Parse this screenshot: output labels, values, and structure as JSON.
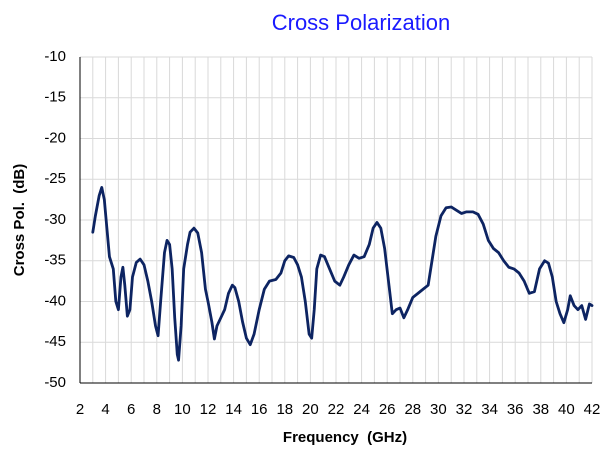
{
  "chart_data": {
    "type": "line",
    "title": "Cross Polarization",
    "xlabel": "Frequency  (GHz)",
    "ylabel": "Cross Pol.  (dB)",
    "title_color": "#1a1aff",
    "color": "#0d2462",
    "grid": true,
    "xlim": [
      2,
      42
    ],
    "xticks": [
      2,
      4,
      6,
      8,
      10,
      12,
      14,
      16,
      18,
      20,
      22,
      24,
      26,
      28,
      30,
      32,
      34,
      36,
      38,
      40,
      42
    ],
    "xminorticks": [
      3,
      5,
      7,
      9,
      11,
      13,
      15,
      17,
      19,
      21,
      23,
      25,
      27,
      29,
      31,
      33,
      35,
      37,
      39,
      41
    ],
    "ylim": [
      -50,
      -10
    ],
    "yticks": [
      -50,
      -45,
      -40,
      -35,
      -30,
      -25,
      -20,
      -15,
      -10
    ],
    "x": [
      3.0,
      3.2,
      3.5,
      3.7,
      3.9,
      4.1,
      4.3,
      4.6,
      4.8,
      5.0,
      5.2,
      5.35,
      5.5,
      5.7,
      5.9,
      6.1,
      6.4,
      6.7,
      7.0,
      7.3,
      7.6,
      7.9,
      8.1,
      8.3,
      8.6,
      8.8,
      9.0,
      9.2,
      9.4,
      9.6,
      9.7,
      9.9,
      10.1,
      10.4,
      10.6,
      10.9,
      11.2,
      11.5,
      11.8,
      12.0,
      12.3,
      12.5,
      12.7,
      13.0,
      13.3,
      13.6,
      13.9,
      14.1,
      14.4,
      14.7,
      15.0,
      15.3,
      15.6,
      16.0,
      16.4,
      16.8,
      17.3,
      17.7,
      18.0,
      18.3,
      18.7,
      19.0,
      19.3,
      19.6,
      19.9,
      20.1,
      20.3,
      20.5,
      20.8,
      21.1,
      21.5,
      21.9,
      22.3,
      22.6,
      23.0,
      23.4,
      23.8,
      24.2,
      24.6,
      24.9,
      25.2,
      25.5,
      25.8,
      26.1,
      26.4,
      26.7,
      27.0,
      27.3,
      27.6,
      28.0,
      28.4,
      28.8,
      29.2,
      29.5,
      29.8,
      30.2,
      30.6,
      31.0,
      31.4,
      31.8,
      32.2,
      32.7,
      33.1,
      33.5,
      33.9,
      34.3,
      34.7,
      35.1,
      35.5,
      35.9,
      36.3,
      36.7,
      37.1,
      37.5,
      37.9,
      38.3,
      38.6,
      38.9,
      39.2,
      39.5,
      39.8,
      40.1,
      40.3,
      40.6,
      40.9,
      41.2,
      41.5,
      41.8,
      42.0
    ],
    "values": [
      -31.5,
      -29.5,
      -27,
      -26,
      -27.5,
      -31,
      -34.5,
      -36,
      -40,
      -41,
      -37,
      -35.8,
      -38,
      -41.8,
      -41,
      -37,
      -35.2,
      -34.8,
      -35.5,
      -37.5,
      -40,
      -43,
      -44.2,
      -40,
      -34,
      -32.5,
      -33,
      -36,
      -42,
      -46.5,
      -47.2,
      -43,
      -36,
      -33,
      -31.5,
      -31,
      -31.6,
      -34,
      -38.5,
      -40,
      -42.5,
      -44.6,
      -43,
      -42,
      -41,
      -39,
      -38,
      -38.3,
      -40,
      -42.5,
      -44.5,
      -45.3,
      -44,
      -41,
      -38.5,
      -37.5,
      -37.3,
      -36.5,
      -35,
      -34.4,
      -34.6,
      -35.5,
      -37,
      -40,
      -44,
      -44.5,
      -41,
      -36,
      -34.3,
      -34.5,
      -36,
      -37.5,
      -38,
      -37,
      -35.5,
      -34.3,
      -34.7,
      -34.5,
      -33,
      -31,
      -30.3,
      -31,
      -33.5,
      -37.5,
      -41.5,
      -41,
      -40.8,
      -42,
      -41,
      -39.5,
      -39,
      -38.5,
      -38,
      -35,
      -32,
      -29.5,
      -28.5,
      -28.4,
      -28.8,
      -29.2,
      -29,
      -29,
      -29.3,
      -30.5,
      -32.5,
      -33.5,
      -34,
      -35,
      -35.8,
      -36,
      -36.5,
      -37.5,
      -39,
      -38.8,
      -36,
      -35,
      -35.3,
      -37,
      -40,
      -41.5,
      -42.6,
      -41,
      -39.3,
      -40.5,
      -41,
      -40.5,
      -42.2,
      -40.3,
      -40.5
    ]
  }
}
